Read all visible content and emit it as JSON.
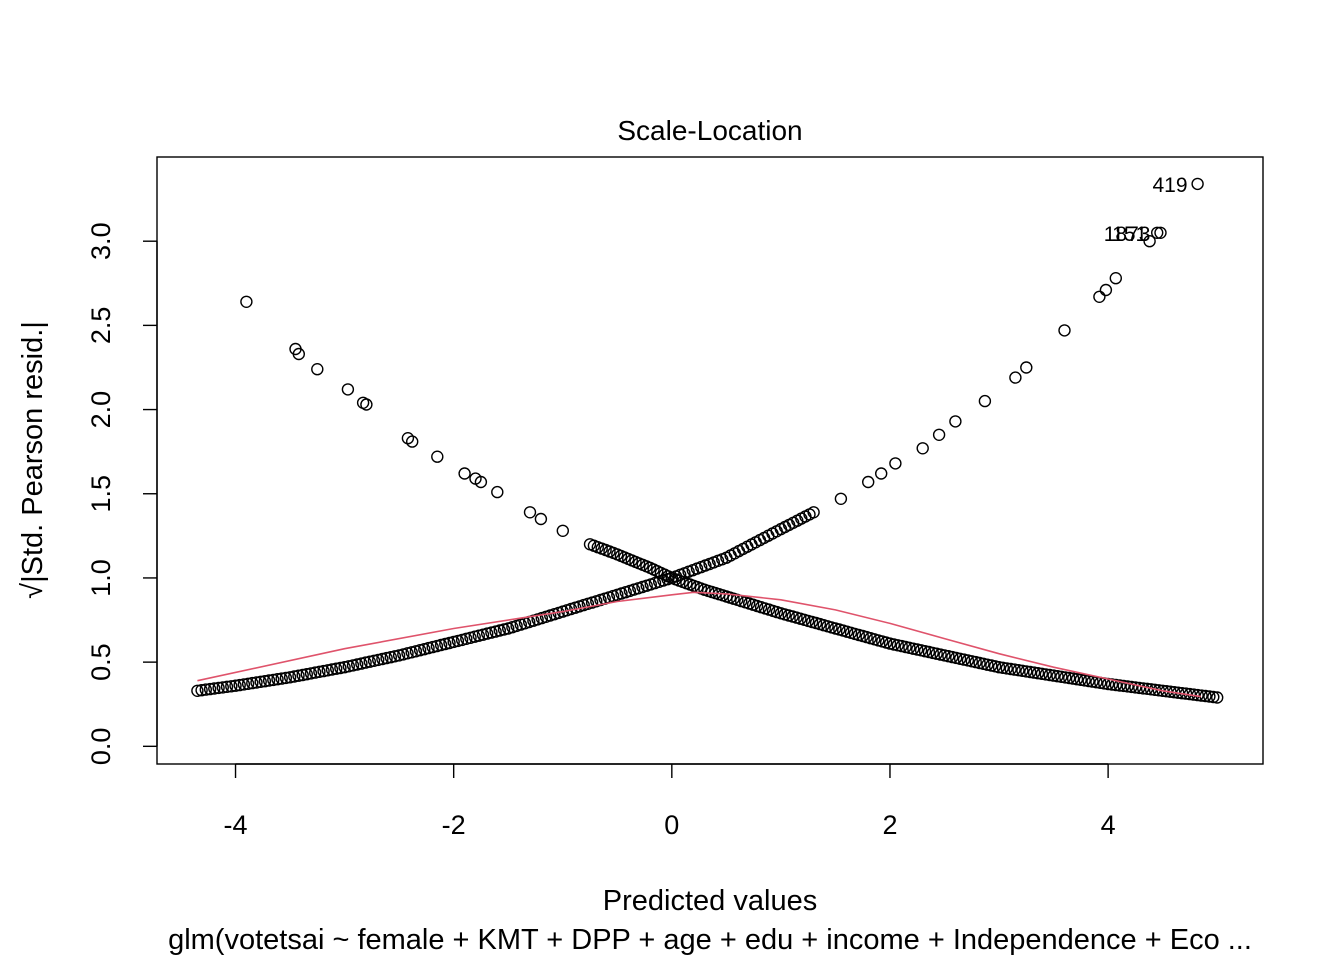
{
  "chart_data": {
    "type": "scatter",
    "title": "Scale-Location",
    "xlabel": "Predicted values",
    "ylabel": "√|Std. Pearson resid.|",
    "subtitle": "glm(votetsai ~ female + KMT + DPP + age + edu + income + Independence + Eco ...",
    "xlim": [
      -4.72,
      5.42
    ],
    "ylim": [
      -0.105,
      3.5
    ],
    "x_ticks": [
      -4,
      -2,
      0,
      2,
      4
    ],
    "y_ticks": [
      0.0,
      0.5,
      1.0,
      1.5,
      2.0,
      2.5,
      3.0
    ],
    "x_tick_labels": [
      "-4",
      "-2",
      "0",
      "2",
      "4"
    ],
    "y_tick_labels": [
      "0.0",
      "0.5",
      "1.0",
      "1.5",
      "2.0",
      "2.5",
      "3.0"
    ],
    "grid": false,
    "legend": "none",
    "smoother_color": "#DF536B",
    "point_color": "#000000",
    "points": {
      "decreasing_branch_sample": [
        [
          -3.9,
          2.64
        ],
        [
          -3.45,
          2.36
        ],
        [
          -3.42,
          2.33
        ],
        [
          -3.25,
          2.24
        ],
        [
          -2.97,
          2.12
        ],
        [
          -2.83,
          2.04
        ],
        [
          -2.8,
          2.03
        ],
        [
          -2.42,
          1.83
        ],
        [
          -2.38,
          1.81
        ],
        [
          -2.15,
          1.72
        ],
        [
          -1.9,
          1.62
        ],
        [
          -1.8,
          1.59
        ],
        [
          -1.75,
          1.57
        ],
        [
          -1.6,
          1.51
        ],
        [
          -1.3,
          1.39
        ],
        [
          -1.2,
          1.35
        ],
        [
          -1.0,
          1.28
        ],
        [
          -0.75,
          1.2
        ],
        [
          -0.5,
          1.14
        ],
        [
          -0.2,
          1.06
        ],
        [
          0.0,
          1.0
        ],
        [
          0.3,
          0.93
        ],
        [
          0.6,
          0.87
        ],
        [
          1.0,
          0.79
        ],
        [
          1.5,
          0.7
        ],
        [
          2.0,
          0.61
        ],
        [
          2.5,
          0.54
        ],
        [
          3.0,
          0.47
        ],
        [
          3.5,
          0.42
        ],
        [
          4.0,
          0.37
        ],
        [
          4.5,
          0.33
        ],
        [
          5.0,
          0.29
        ]
      ],
      "increasing_branch_sample": [
        [
          -4.35,
          0.33
        ],
        [
          -4.0,
          0.36
        ],
        [
          -3.5,
          0.41
        ],
        [
          -3.0,
          0.47
        ],
        [
          -2.5,
          0.54
        ],
        [
          -2.0,
          0.62
        ],
        [
          -1.5,
          0.7
        ],
        [
          -1.0,
          0.8
        ],
        [
          -0.5,
          0.9
        ],
        [
          0.0,
          1.0
        ],
        [
          0.5,
          1.12
        ],
        [
          1.0,
          1.29
        ],
        [
          1.3,
          1.39
        ],
        [
          1.55,
          1.47
        ],
        [
          1.8,
          1.57
        ],
        [
          1.92,
          1.62
        ],
        [
          2.05,
          1.68
        ],
        [
          2.3,
          1.77
        ],
        [
          2.45,
          1.85
        ],
        [
          2.6,
          1.93
        ],
        [
          2.87,
          2.05
        ],
        [
          3.15,
          2.19
        ],
        [
          3.25,
          2.25
        ],
        [
          3.6,
          2.47
        ],
        [
          3.92,
          2.67
        ],
        [
          3.98,
          2.71
        ],
        [
          4.07,
          2.78
        ],
        [
          4.38,
          3.0
        ],
        [
          4.45,
          3.05
        ],
        [
          4.48,
          3.05
        ],
        [
          4.82,
          3.34
        ]
      ]
    },
    "labeled_points": [
      {
        "label": "419",
        "x": 4.82,
        "y": 3.34
      },
      {
        "label": "1873",
        "x": 4.48,
        "y": 3.05
      },
      {
        "label": "151",
        "x": 4.45,
        "y": 3.05
      }
    ],
    "smoother": {
      "x": [
        -4.35,
        -3.0,
        -2.0,
        -1.0,
        -0.5,
        0.0,
        0.2,
        0.5,
        1.0,
        1.5,
        2.0,
        2.5,
        3.0,
        3.5,
        4.0,
        4.5,
        4.85
      ],
      "y": [
        0.39,
        0.58,
        0.7,
        0.8,
        0.86,
        0.9,
        0.915,
        0.905,
        0.87,
        0.81,
        0.73,
        0.64,
        0.55,
        0.47,
        0.4,
        0.33,
        0.295
      ]
    }
  }
}
